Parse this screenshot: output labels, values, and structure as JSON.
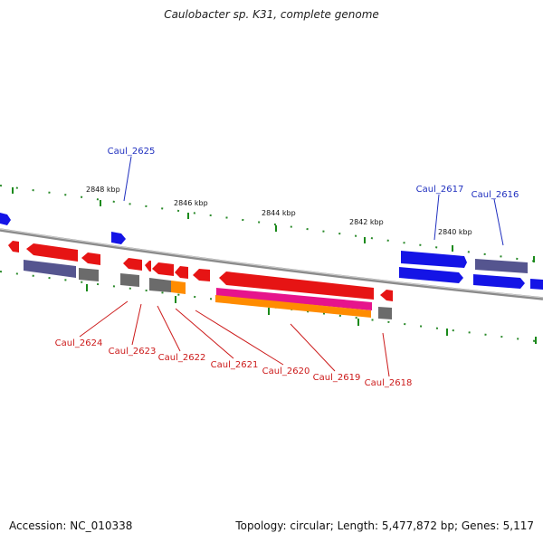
{
  "title": "Caulobacter sp. K31, complete genome",
  "footer": {
    "accession": "Accession: NC_010338",
    "summary": "Topology: circular; Length: 5,477,872 bp; Genes: 5,117"
  },
  "scale_labels": [
    "2848 kbp",
    "2846 kbp",
    "2844 kbp",
    "2842 kbp",
    "2840 kbp"
  ],
  "forward_gene_labels": [
    "Caul_2625",
    "Caul_2617",
    "Caul_2616"
  ],
  "reverse_gene_labels": [
    "Caul_2624",
    "Caul_2623",
    "Caul_2622",
    "Caul_2621",
    "Caul_2620",
    "Caul_2619",
    "Caul_2618"
  ],
  "colors": {
    "forward_gene": "#1414e6",
    "reverse_gene": "#e61414",
    "forward_label": "#1f2fbf",
    "reverse_label": "#cc1a1a",
    "backbone": "#8a8a8a",
    "tick": "#1a8a1a",
    "feature_slate": "#55558f",
    "feature_gray": "#6b6b6b",
    "feature_orange": "#ff8c00",
    "feature_magenta": "#e6148c"
  }
}
